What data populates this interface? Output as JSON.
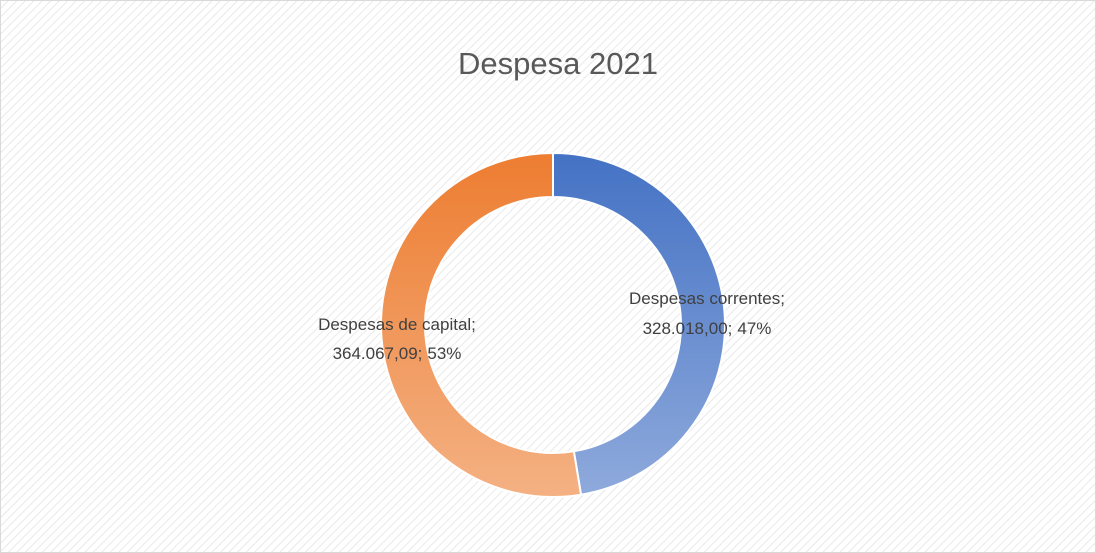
{
  "chart_data": {
    "type": "donut",
    "title": "Despesa 2021",
    "categories": [
      "Despesas correntes",
      "Despesas de capital"
    ],
    "values": [
      328018.0,
      364067.09
    ],
    "value_labels": [
      "328.018,00",
      "364.067,09"
    ],
    "percent_labels": [
      "47%",
      "53%"
    ],
    "label_separator": ";",
    "colors": [
      [
        "#4472c4",
        "#8faadc"
      ],
      [
        "#ed7d31",
        "#f4b183"
      ]
    ]
  }
}
